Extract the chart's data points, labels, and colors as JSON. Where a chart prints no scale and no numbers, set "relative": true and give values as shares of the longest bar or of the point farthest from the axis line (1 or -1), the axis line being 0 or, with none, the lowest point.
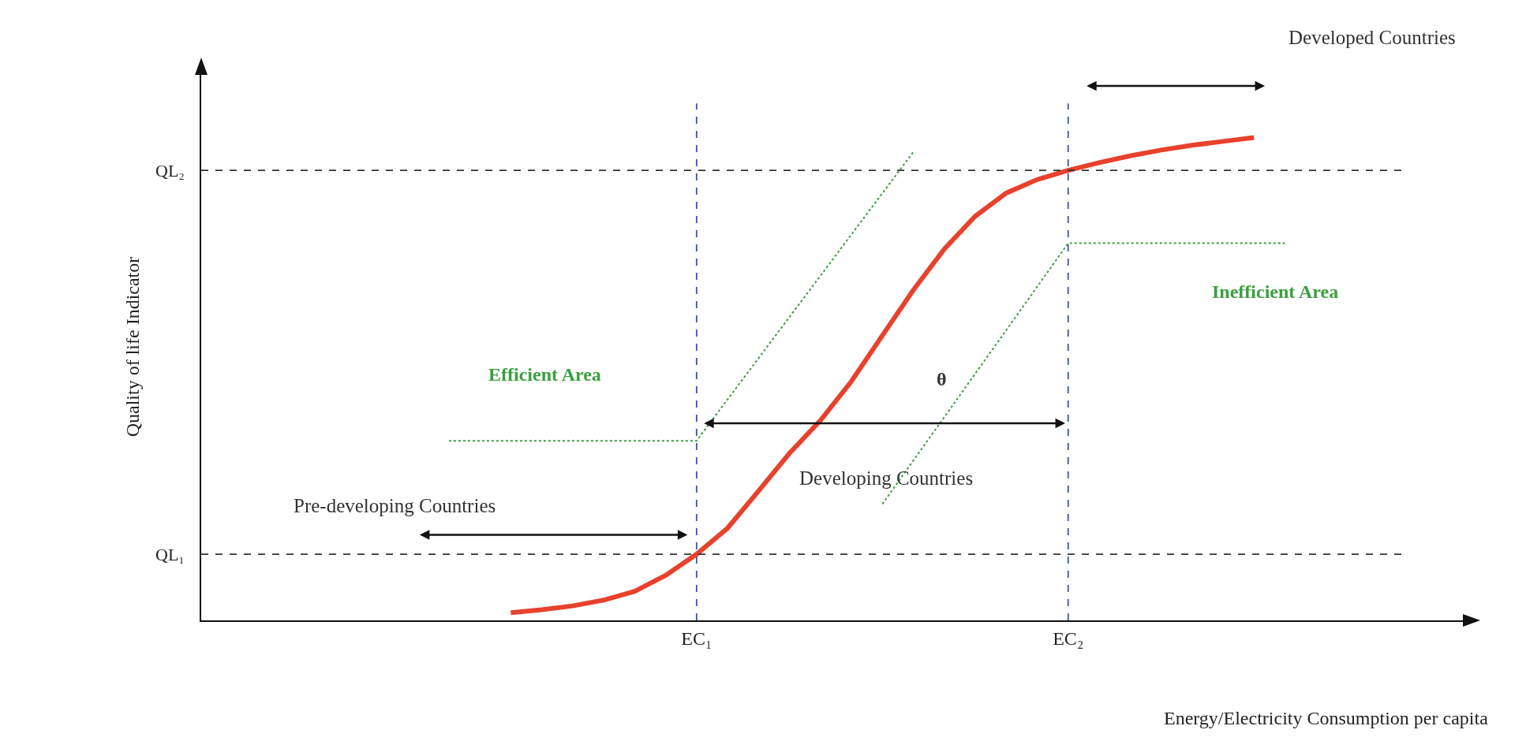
{
  "chart_data": {
    "type": "line",
    "relative": true,
    "xlabel": "Energy/Electricity Consumption per capita",
    "ylabel": "Quality of life Indicator",
    "categories": [
      null,
      null,
      null,
      null,
      null,
      null,
      null,
      null,
      null,
      null,
      null,
      null,
      null,
      null,
      null,
      null,
      "EC₁",
      null,
      null,
      null,
      null,
      null,
      null,
      null,
      null,
      null,
      null,
      null,
      "EC₂",
      null,
      null,
      null,
      null,
      null,
      null,
      null,
      null,
      null,
      null,
      null,
      null
    ],
    "series": [
      {
        "color": "#e8412c",
        "values": [
          null,
          null,
          null,
          null,
          null,
          null,
          null,
          null,
          null,
          null,
          0.016,
          0.022,
          0.03,
          0.042,
          0.06,
          0.093,
          0.137,
          0.191,
          0.268,
          0.346,
          0.414,
          0.495,
          0.59,
          0.684,
          0.769,
          0.837,
          0.885,
          0.913,
          0.932,
          0.948,
          0.962,
          0.974,
          0.984,
          0.992,
          1,
          null,
          null,
          null,
          null,
          null,
          null
        ]
      },
      {
        "color": "#3aa040",
        "line_style": "dotted",
        "values": [
          null,
          null,
          null,
          null,
          null,
          null,
          null,
          null,
          0.372,
          null,
          null,
          null,
          null,
          null,
          null,
          null,
          0.372,
          null,
          null,
          null,
          null,
          null,
          null,
          0.97,
          null,
          null,
          null,
          null,
          null,
          null,
          null,
          null,
          null,
          null,
          null,
          null,
          null,
          null,
          null,
          null,
          null
        ]
      },
      {
        "color": "#3aa040",
        "line_style": "dotted",
        "values": [
          null,
          null,
          null,
          null,
          null,
          null,
          null,
          null,
          null,
          null,
          null,
          null,
          null,
          null,
          null,
          null,
          null,
          null,
          null,
          null,
          null,
          null,
          0.241,
          null,
          null,
          null,
          null,
          null,
          0.781,
          null,
          null,
          null,
          null,
          null,
          null,
          0.781,
          null,
          null,
          null,
          null,
          null
        ]
      }
    ],
    "ref_lines": [
      {
        "axis": "x",
        "value": "EC₁",
        "color": "#3b4fc4",
        "line_style": "dashed"
      },
      {
        "axis": "x",
        "value": "EC₂",
        "color": "#3b4fc4",
        "line_style": "dashed"
      },
      {
        "axis": "y",
        "value": 0.137,
        "label": "QL₁",
        "color": "#333333",
        "line_style": "dashed"
      },
      {
        "axis": "y",
        "value": 0.932,
        "label": "QL₂",
        "color": "#333333",
        "line_style": "dashed"
      }
    ],
    "annotations": [
      "Developed Countries",
      "Inefficient Area",
      "Efficient Area",
      "θ",
      "Developing Countries",
      "Pre-developing Countries"
    ],
    "grid": false,
    "marker": "none",
    "line_style": "solid"
  }
}
